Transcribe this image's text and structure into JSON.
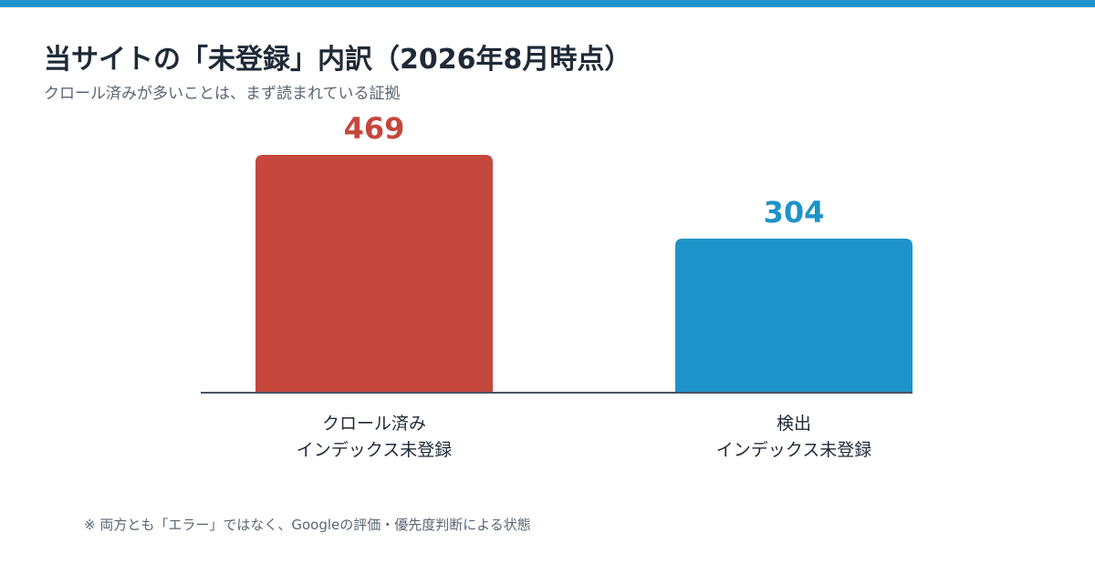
{
  "header": {
    "title": "当サイトの「未登録」内訳（2026年8月時点）",
    "subtitle": "クロール済みが多いことは、まず読まれている証拠"
  },
  "footnote": "※ 両方とも「エラー」ではなく、Googleの評価・優先度判断による状態",
  "colors": {
    "accent_bar": "#1e93c9",
    "crawled": "#c5473d",
    "discovered": "#1e93c9",
    "axis": "#4a5462"
  },
  "chart_data": {
    "type": "bar",
    "title": "当サイトの「未登録」内訳（2026年8月時点）",
    "subtitle": "クロール済みが多いことは、まず読まれている証拠",
    "categories": [
      [
        "クロール済み",
        "インデックス未登録"
      ],
      [
        "検出",
        "インデックス未登録"
      ]
    ],
    "values": [
      469,
      304
    ],
    "bar_colors": [
      "#c5473d",
      "#1e93c9"
    ],
    "ylim": [
      0,
      469
    ],
    "grid": false,
    "legend": "none"
  }
}
